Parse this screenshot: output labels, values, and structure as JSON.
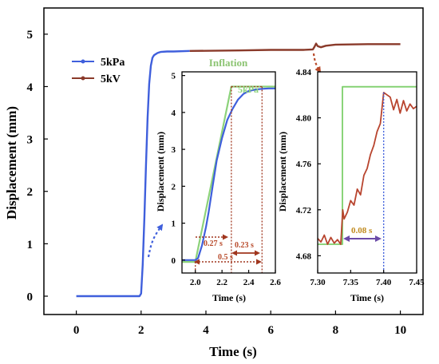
{
  "chart_data": [
    {
      "type": "line",
      "xlabel": "Time (s)",
      "ylabel": "Displacement (mm)",
      "xlim": [
        -1,
        10.7
      ],
      "ylim": [
        -0.35,
        5.5
      ],
      "xticks": [
        "0",
        "2",
        "4",
        "6",
        "8",
        "10"
      ],
      "yticks": [
        "0",
        "1",
        "2",
        "3",
        "4",
        "5"
      ],
      "legend_position": "top-left",
      "series": [
        {
          "name": "5kPa",
          "color": "#3f5fdc",
          "x": [
            0,
            1.95,
            2.0,
            2.05,
            2.1,
            2.15,
            2.2,
            2.25,
            2.3,
            2.35,
            2.4,
            2.45,
            2.5,
            2.55,
            2.6,
            2.8,
            3.0,
            3.5
          ],
          "y": [
            0,
            0,
            0.05,
            0.6,
            1.5,
            2.5,
            3.4,
            4.05,
            4.4,
            4.55,
            4.6,
            4.62,
            4.64,
            4.65,
            4.66,
            4.67,
            4.67,
            4.68
          ]
        },
        {
          "name": "5kV",
          "color": "#8a3a2a",
          "x": [
            3.5,
            5,
            6,
            7,
            7.3,
            7.35,
            7.4,
            7.45,
            7.55,
            7.7,
            8,
            9,
            10
          ],
          "y": [
            4.68,
            4.69,
            4.7,
            4.7,
            4.71,
            4.76,
            4.82,
            4.77,
            4.75,
            4.78,
            4.8,
            4.81,
            4.81
          ]
        }
      ],
      "annotations": []
    },
    {
      "type": "line",
      "title": "Inflation",
      "title_color": "#8cc472",
      "xlabel": "Time (s)",
      "ylabel": "Displacement (mm)",
      "xlim": [
        1.9,
        2.6
      ],
      "ylim": [
        -0.35,
        5.1
      ],
      "xticks": [
        "2.0",
        "2.2",
        "2.4",
        "2.6"
      ],
      "yticks": [
        "0",
        "1",
        "2",
        "3",
        "4",
        "5"
      ],
      "series": [
        {
          "name": "5kPa",
          "color": "#8cd27a",
          "x": [
            1.9,
            2.0,
            2.27,
            2.6
          ],
          "y": [
            -0.05,
            -0.05,
            4.7,
            4.7
          ]
        },
        {
          "color": "#3f5fdc",
          "x": [
            1.9,
            2.0,
            2.02,
            2.05,
            2.08,
            2.1,
            2.13,
            2.16,
            2.2,
            2.24,
            2.28,
            2.32,
            2.36,
            2.4,
            2.45,
            2.5,
            2.55,
            2.6
          ],
          "y": [
            0,
            0,
            0.05,
            0.4,
            0.9,
            1.3,
            2.0,
            2.7,
            3.3,
            3.8,
            4.1,
            4.35,
            4.5,
            4.58,
            4.62,
            4.64,
            4.65,
            4.65
          ]
        }
      ],
      "annotations": [
        {
          "text": "5kPa",
          "color": "#8cd27a"
        },
        {
          "text": "0.27 s",
          "color": "#b84a2a"
        },
        {
          "text": "0.23 s",
          "color": "#b84a2a"
        },
        {
          "text": "0.5 s",
          "color": "#b84a2a"
        }
      ]
    },
    {
      "type": "line",
      "xlabel": "Time (s)",
      "ylabel": "Displacement (mm)",
      "xlim": [
        7.3,
        7.45
      ],
      "ylim": [
        4.665,
        4.84
      ],
      "xticks": [
        "7.30",
        "7.35",
        "7.40",
        "7.45"
      ],
      "yticks": [
        "4.68",
        "4.72",
        "4.76",
        "4.80",
        "4.84"
      ],
      "series": [
        {
          "color": "#7ecf6c",
          "x": [
            7.3,
            7.3375,
            7.3375,
            7.45
          ],
          "y": [
            4.69,
            4.69,
            4.827,
            4.827
          ]
        },
        {
          "color": "#b8442e",
          "x": [
            7.3,
            7.305,
            7.31,
            7.315,
            7.32,
            7.325,
            7.33,
            7.335,
            7.338,
            7.34,
            7.345,
            7.35,
            7.355,
            7.36,
            7.365,
            7.37,
            7.375,
            7.38,
            7.385,
            7.39,
            7.395,
            7.4,
            7.405,
            7.41,
            7.415,
            7.42,
            7.425,
            7.43,
            7.435,
            7.44,
            7.445,
            7.45
          ],
          "y": [
            4.695,
            4.692,
            4.698,
            4.69,
            4.696,
            4.691,
            4.694,
            4.69,
            4.72,
            4.712,
            4.718,
            4.728,
            4.724,
            4.738,
            4.733,
            4.75,
            4.756,
            4.768,
            4.776,
            4.788,
            4.795,
            4.822,
            4.82,
            4.818,
            4.807,
            4.816,
            4.804,
            4.815,
            4.806,
            4.812,
            4.808,
            4.81
          ]
        }
      ],
      "annotations": [
        {
          "text": "0.08 s",
          "color": "#c08a1e"
        }
      ]
    }
  ]
}
